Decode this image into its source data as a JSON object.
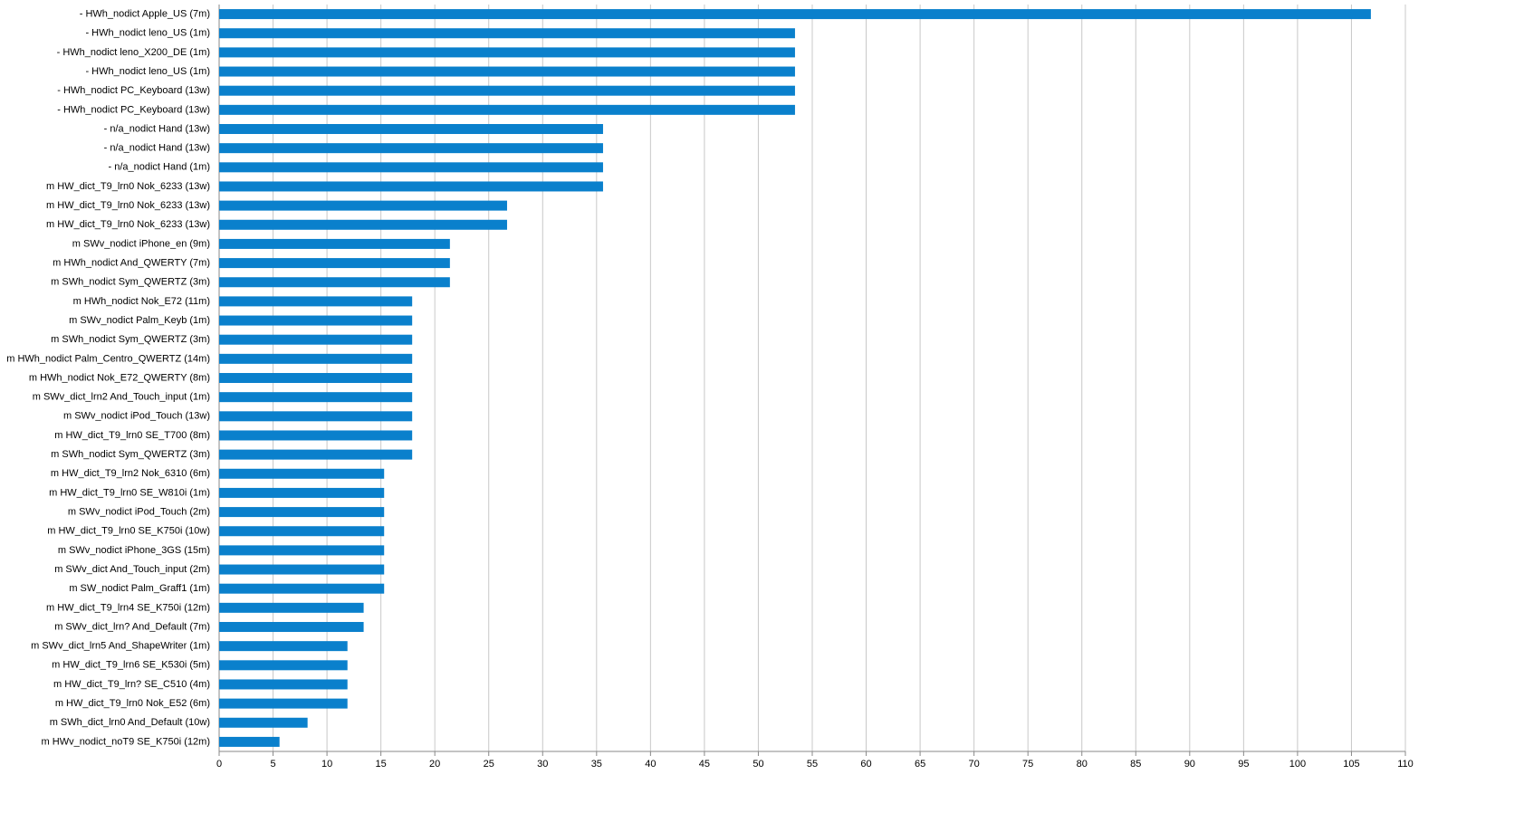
{
  "chart_data": {
    "type": "barh",
    "color": "#0a80cc",
    "grid": true,
    "categories": [
      "- HWh_nodict Apple_US (7m)",
      "- HWh_nodict leno_US (1m)",
      "- HWh_nodict leno_X200_DE (1m)",
      "- HWh_nodict leno_US (1m)",
      "- HWh_nodict PC_Keyboard (13w)",
      "- HWh_nodict PC_Keyboard (13w)",
      "- n/a_nodict Hand (13w)",
      "- n/a_nodict Hand (13w)",
      "- n/a_nodict Hand (1m)",
      "m HW_dict_T9_lrn0 Nok_6233 (13w)",
      "m HW_dict_T9_lrn0 Nok_6233 (13w)",
      "m HW_dict_T9_lrn0 Nok_6233 (13w)",
      "m SWv_nodict iPhone_en (9m)",
      "m HWh_nodict And_QWERTY (7m)",
      "m SWh_nodict Sym_QWERTZ (3m)",
      "m HWh_nodict Nok_E72 (11m)",
      "m SWv_nodict Palm_Keyb (1m)",
      "m SWh_nodict Sym_QWERTZ (3m)",
      "m HWh_nodict Palm_Centro_QWERTZ (14m)",
      "m HWh_nodict Nok_E72_QWERTY (8m)",
      "m SWv_dict_lrn2 And_Touch_input (1m)",
      "m SWv_nodict iPod_Touch (13w)",
      "m HW_dict_T9_lrn0 SE_T700 (8m)",
      "m SWh_nodict Sym_QWERTZ (3m)",
      "m HW_dict_T9_lrn2 Nok_6310 (6m)",
      "m HW_dict_T9_lrn0 SE_W810i (1m)",
      "m SWv_nodict iPod_Touch (2m)",
      "m HW_dict_T9_lrn0 SE_K750i (10w)",
      "m SWv_nodict iPhone_3GS (15m)",
      "m SWv_dict And_Touch_input (2m)",
      "m SW_nodict Palm_Graff1 (1m)",
      "m HW_dict_T9_lrn4 SE_K750i (12m)",
      "m SWv_dict_lrn? And_Default (7m)",
      "m SWv_dict_lrn5 And_ShapeWriter (1m)",
      "m HW_dict_T9_lrn6 SE_K530i (5m)",
      "m HW_dict_T9_lrn? SE_C510 (4m)",
      "m HW_dict_T9_lrn0 Nok_E52 (6m)",
      "m SWh_dict_lrn0 And_Default (10w)",
      "m HWv_nodict_noT9 SE_K750i (12m)"
    ],
    "values": [
      106.8,
      53.4,
      53.4,
      53.4,
      53.4,
      53.4,
      35.6,
      35.6,
      35.6,
      35.6,
      26.7,
      26.7,
      21.4,
      21.4,
      21.4,
      17.9,
      17.9,
      17.9,
      17.9,
      17.9,
      17.9,
      17.9,
      17.9,
      17.9,
      15.3,
      15.3,
      15.3,
      15.3,
      15.3,
      15.3,
      15.3,
      13.4,
      13.4,
      11.9,
      11.9,
      11.9,
      11.9,
      8.2,
      5.6
    ],
    "xlim": [
      0,
      110
    ],
    "xticks": [
      0,
      5,
      10,
      15,
      20,
      25,
      30,
      35,
      40,
      45,
      50,
      55,
      60,
      65,
      70,
      75,
      80,
      85,
      90,
      95,
      100,
      105,
      110
    ]
  }
}
